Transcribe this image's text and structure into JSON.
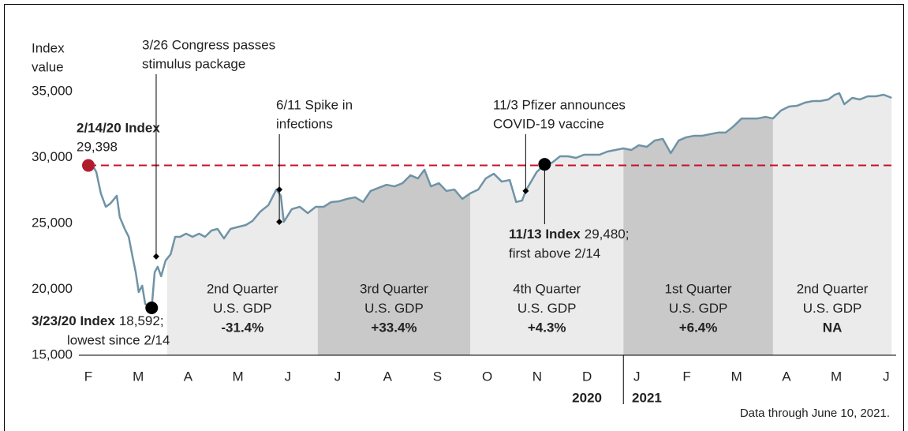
{
  "chart_data": {
    "type": "line",
    "y_label": [
      "Index",
      "value"
    ],
    "x": [
      0,
      0.09,
      0.16,
      0.25,
      0.35,
      0.44,
      0.57,
      0.63,
      0.73,
      0.81,
      0.87,
      0.95,
      1.01,
      1.08,
      1.14,
      1.27,
      1.33,
      1.39,
      1.46,
      1.55,
      1.65,
      1.74,
      1.84,
      1.96,
      2.09,
      2.22,
      2.34,
      2.47,
      2.59,
      2.72,
      2.85,
      2.97,
      3.16,
      3.29,
      3.45,
      3.61,
      3.77,
      3.86,
      3.92,
      4.08,
      4.24,
      4.4,
      4.56,
      4.72,
      4.87,
      5.03,
      5.19,
      5.35,
      5.51,
      5.66,
      5.82,
      5.98,
      6.14,
      6.3,
      6.46,
      6.61,
      6.74,
      6.87,
      7.03,
      7.18,
      7.34,
      7.5,
      7.66,
      7.82,
      7.97,
      8.13,
      8.29,
      8.45,
      8.58,
      8.7,
      8.77,
      8.86,
      8.99,
      9.15,
      9.3,
      9.46,
      9.62,
      9.78,
      9.94,
      10.09,
      10.25,
      10.41,
      10.57,
      10.73,
      10.89,
      11.04,
      11.2,
      11.36,
      11.52,
      11.68,
      11.84,
      11.99,
      12.15,
      12.31,
      12.47,
      12.63,
      12.78,
      12.94,
      13.1,
      13.26,
      13.42,
      13.58,
      13.73,
      13.89,
      14.05,
      14.21,
      14.37,
      14.53,
      14.68,
      14.84,
      14.97,
      15.06,
      15.16,
      15.32,
      15.47,
      15.63,
      15.79,
      15.95,
      16.11
    ],
    "values": [
      29398,
      29370,
      28890,
      27280,
      26260,
      26500,
      27100,
      25480,
      24580,
      23980,
      22780,
      21290,
      19790,
      20270,
      18890,
      18592,
      21290,
      21710,
      20990,
      22190,
      22660,
      23980,
      23980,
      24220,
      23980,
      24220,
      23980,
      24460,
      24580,
      23860,
      24580,
      24700,
      24880,
      25180,
      25900,
      26380,
      27570,
      27100,
      25120,
      26080,
      26260,
      25780,
      26260,
      26260,
      26620,
      26680,
      26860,
      26980,
      26620,
      27460,
      27700,
      27930,
      27810,
      28050,
      28650,
      28410,
      29070,
      27810,
      28050,
      27460,
      27570,
      26860,
      27280,
      27570,
      28410,
      28770,
      28170,
      28290,
      26620,
      26740,
      27460,
      28050,
      28890,
      29480,
      29610,
      30090,
      30090,
      29970,
      30210,
      30210,
      30210,
      30450,
      30570,
      30690,
      30570,
      30930,
      30810,
      31290,
      31410,
      30330,
      31290,
      31530,
      31650,
      31650,
      31770,
      31890,
      31890,
      32370,
      32960,
      32960,
      32960,
      33080,
      32960,
      33560,
      33860,
      33920,
      34160,
      34280,
      34280,
      34400,
      34760,
      34880,
      34040,
      34520,
      34400,
      34640,
      34640,
      34760,
      34520
    ],
    "color": "#6f93a6",
    "xlim": [
      0,
      16.2
    ],
    "xticks": [
      {
        "value": 0,
        "label": "F"
      },
      {
        "value": 1,
        "label": "M"
      },
      {
        "value": 2,
        "label": "A"
      },
      {
        "value": 3,
        "label": "M"
      },
      {
        "value": 4,
        "label": "J"
      },
      {
        "value": 5,
        "label": "J"
      },
      {
        "value": 6,
        "label": "A"
      },
      {
        "value": 7,
        "label": "S"
      },
      {
        "value": 8,
        "label": "O"
      },
      {
        "value": 9,
        "label": "N"
      },
      {
        "value": 10,
        "label": "D"
      },
      {
        "value": 11,
        "label": "J"
      },
      {
        "value": 12,
        "label": "F"
      },
      {
        "value": 13,
        "label": "M"
      },
      {
        "value": 14,
        "label": "A"
      },
      {
        "value": 15,
        "label": "M"
      },
      {
        "value": 16,
        "label": "J"
      }
    ],
    "ylim": [
      15000,
      35000
    ],
    "yticks": [
      {
        "value": 15000,
        "label": "15,000"
      },
      {
        "value": 20000,
        "label": "20,000"
      },
      {
        "value": 25000,
        "label": "25,000"
      },
      {
        "value": 30000,
        "label": "30,000"
      },
      {
        "value": 35000,
        "label": "35,000"
      }
    ],
    "years": [
      {
        "label": "2020",
        "x": 10
      },
      {
        "label": "2021",
        "x": 11.2
      }
    ],
    "year_divider": 10.73,
    "quarters": [
      {
        "lines": [
          "2nd Quarter",
          "U.S. GDP",
          "-31.4%"
        ],
        "from": 1.58,
        "to": 4.6,
        "color": "#ebebeb"
      },
      {
        "lines": [
          "3rd Quarter",
          "U.S. GDP",
          "+33.4%"
        ],
        "from": 4.6,
        "to": 7.66,
        "color": "#c9c9c9"
      },
      {
        "lines": [
          "4th Quarter",
          "U.S. GDP",
          "+4.3%"
        ],
        "from": 7.66,
        "to": 10.73,
        "color": "#ebebeb"
      },
      {
        "lines": [
          "1st Quarter",
          "U.S. GDP",
          "+6.4%"
        ],
        "from": 10.73,
        "to": 13.73,
        "color": "#c9c9c9"
      },
      {
        "lines": [
          "2nd Quarter",
          "U.S. GDP",
          "NA"
        ],
        "from": 13.73,
        "to": 16.11,
        "color": "#ebebeb"
      }
    ],
    "reference_line": {
      "value": 29398,
      "color": "#c8102e",
      "dashed": true
    },
    "highlights": [
      {
        "label": "2/14/20 Index",
        "value": 29398,
        "value_label": "29,398",
        "x": 0,
        "color": "#b01c2e"
      },
      {
        "label": "3/23/20 Index",
        "value": 18592,
        "value_label": "18,592;",
        "note": "lowest since 2/14",
        "x": 1.27,
        "color": "#000000"
      },
      {
        "label": "11/13 Index",
        "value": 29480,
        "value_label": "29,480;",
        "note": "first above 2/14",
        "x": 9.15,
        "color": "#000000"
      }
    ],
    "events": [
      {
        "lines": [
          "3/26 Congress passes",
          "stimulus package"
        ],
        "x": 1.36,
        "values": [
          22490
        ]
      },
      {
        "lines": [
          "6/11 Spike in",
          "infections"
        ],
        "x": 3.83,
        "values": [
          27570,
          25120
        ]
      },
      {
        "lines": [
          "11/3 Pfizer announces",
          "COVID-19 vaccine"
        ],
        "x": 8.77,
        "values": [
          27460
        ]
      }
    ],
    "footnote": "Data through June 10, 2021."
  }
}
